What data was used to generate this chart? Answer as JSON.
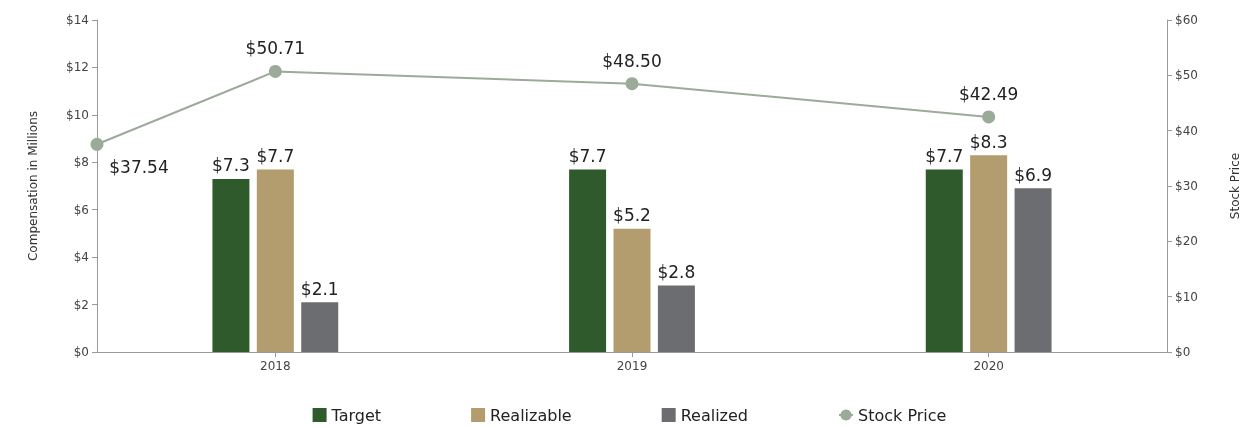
{
  "chart_data": {
    "type": "bar",
    "ylabel": "Compensation in Millions",
    "y2label": "Stock Price",
    "xlim": [
      2017.5,
      2020.5
    ],
    "xticks": [
      2018,
      2019,
      2020
    ],
    "ylim": [
      0,
      14
    ],
    "yticks": [
      {
        "value": 0,
        "label": "$0"
      },
      {
        "value": 2,
        "label": "$2"
      },
      {
        "value": 4,
        "label": "$4"
      },
      {
        "value": 6,
        "label": "$6"
      },
      {
        "value": 8,
        "label": "$8"
      },
      {
        "value": 10,
        "label": "$10"
      },
      {
        "value": 12,
        "label": "$12"
      },
      {
        "value": 14,
        "label": "$14"
      }
    ],
    "y2lim": [
      0,
      60
    ],
    "y2ticks": [
      {
        "value": 0,
        "label": "$0"
      },
      {
        "value": 10,
        "label": "$10"
      },
      {
        "value": 20,
        "label": "$20"
      },
      {
        "value": 30,
        "label": "$30"
      },
      {
        "value": 40,
        "label": "$40"
      },
      {
        "value": 50,
        "label": "$50"
      },
      {
        "value": 60,
        "label": "$60"
      }
    ],
    "series": [
      {
        "name": "Target",
        "color": "#2f5a2c",
        "x": [
          2018,
          2019,
          2020
        ],
        "values": [
          7.3,
          7.7,
          7.7
        ],
        "value_labels": [
          "$7.3",
          "$7.7",
          "$7.7"
        ]
      },
      {
        "name": "Realizable",
        "color": "#b39d6f",
        "x": [
          2018,
          2019,
          2020
        ],
        "values": [
          7.7,
          5.2,
          8.3
        ],
        "value_labels": [
          "$7.7",
          "$5.2",
          "$8.3"
        ]
      },
      {
        "name": "Realized",
        "color": "#6c6d70",
        "x": [
          2018,
          2019,
          2020
        ],
        "values": [
          2.1,
          2.8,
          6.9
        ],
        "value_labels": [
          "$2.1",
          "$2.8",
          "$6.9"
        ]
      },
      {
        "name": "Stock Price",
        "type": "line",
        "axis": "y2",
        "color": "#9caa9a",
        "x": [
          2017.5,
          2018,
          2019,
          2020
        ],
        "values": [
          37.54,
          50.71,
          48.5,
          42.49
        ],
        "value_labels": [
          "$37.54",
          "$50.71",
          "$48.50",
          "$42.49"
        ]
      }
    ],
    "legend": "bottom",
    "grid": false,
    "marker": "circle",
    "line_style": "solid"
  }
}
